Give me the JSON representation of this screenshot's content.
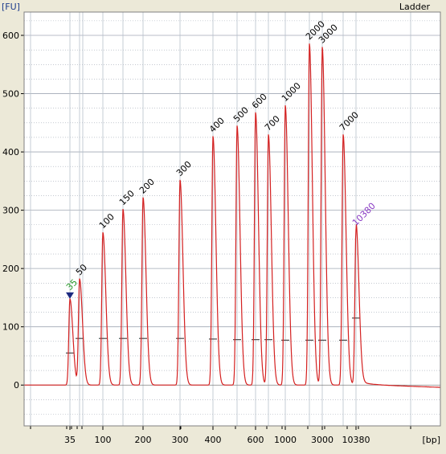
{
  "chart_data": {
    "type": "line",
    "title": "Ladder",
    "ylabel": "[FU]",
    "xlabel": "[bp]",
    "ylim": [
      -70,
      640
    ],
    "yticks": [
      0,
      100,
      200,
      300,
      400,
      500,
      600
    ],
    "grid": true,
    "colors": {
      "trace": "#d42020",
      "marker_label": "#2e9b2e",
      "upper_marker_label": "#8a3cc4",
      "marker": "#1c2a80",
      "grid": "#a0a8b4",
      "region": "#4a4a4a"
    },
    "peaks": [
      {
        "bp": "35",
        "height": 148,
        "label": "35",
        "color": "marker_label"
      },
      {
        "bp": "50",
        "height": 182,
        "label": "50",
        "color": "default"
      },
      {
        "bp": "100",
        "height": 262,
        "label": "100",
        "color": "default"
      },
      {
        "bp": "150",
        "height": 302,
        "label": "150",
        "color": "default"
      },
      {
        "bp": "200",
        "height": 322,
        "label": "200",
        "color": "default"
      },
      {
        "bp": "300",
        "height": 352,
        "label": "300",
        "color": "default"
      },
      {
        "bp": "400",
        "height": 427,
        "label": "400",
        "color": "default"
      },
      {
        "bp": "500",
        "height": 445,
        "label": "500",
        "color": "default"
      },
      {
        "bp": "600",
        "height": 468,
        "label": "600",
        "color": "default"
      },
      {
        "bp": "700",
        "height": 430,
        "label": "700",
        "color": "default"
      },
      {
        "bp": "1000",
        "height": 480,
        "label": "1000",
        "color": "default"
      },
      {
        "bp": "2000",
        "height": 586,
        "label": "2000",
        "color": "default"
      },
      {
        "bp": "3000",
        "height": 580,
        "label": "3000",
        "color": "default"
      },
      {
        "bp": "7000",
        "height": 430,
        "label": "7000",
        "color": "default"
      },
      {
        "bp": "10380",
        "height": 267,
        "label": "10380",
        "color": "upper_marker_label"
      }
    ],
    "x_tick_labels": [
      "35",
      "100",
      "200",
      "300",
      "400",
      "600",
      "1000",
      "3000",
      "10380"
    ],
    "region_levels": [
      {
        "bp": "35",
        "level": 55
      },
      {
        "bp": "50",
        "level": 80
      },
      {
        "bp": "100",
        "level": 80
      },
      {
        "bp": "150",
        "level": 80
      },
      {
        "bp": "200",
        "level": 80
      },
      {
        "bp": "300",
        "level": 80
      },
      {
        "bp": "400",
        "level": 79
      },
      {
        "bp": "500",
        "level": 78
      },
      {
        "bp": "600",
        "level": 78
      },
      {
        "bp": "700",
        "level": 78
      },
      {
        "bp": "1000",
        "level": 77
      },
      {
        "bp": "2000",
        "level": 77
      },
      {
        "bp": "3000",
        "level": 77
      },
      {
        "bp": "7000",
        "level": 77
      },
      {
        "bp": "10380",
        "level": 115
      }
    ]
  }
}
